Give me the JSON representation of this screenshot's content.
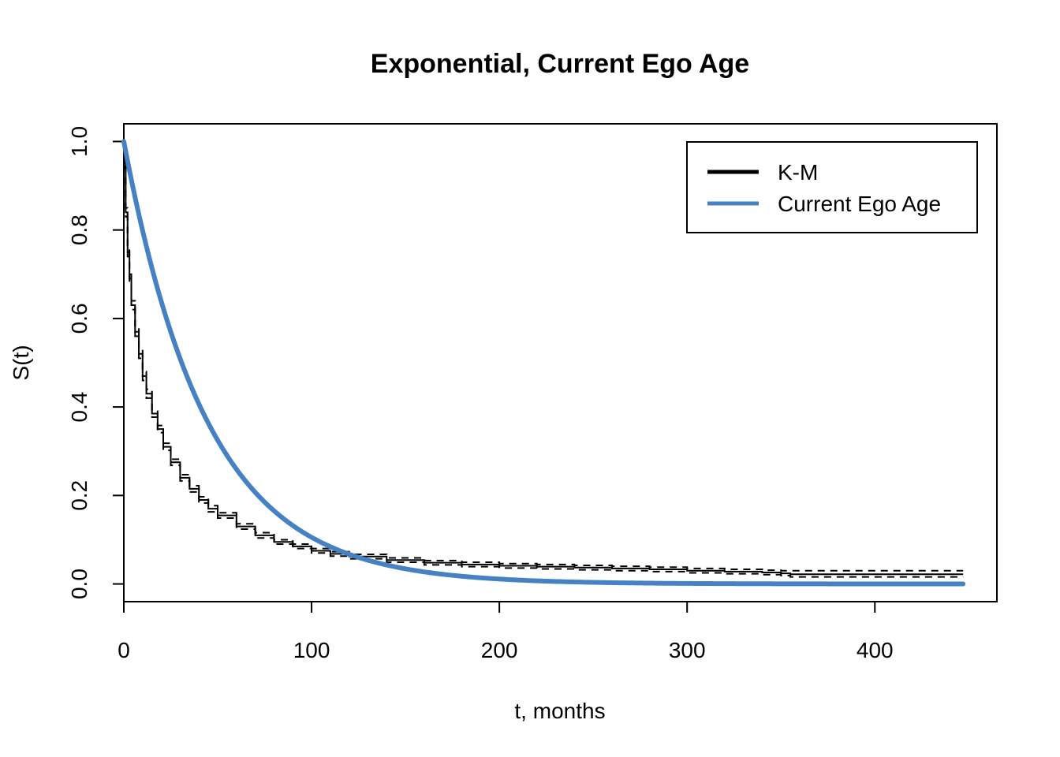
{
  "chart_data": {
    "type": "line",
    "title": "Exponential, Current Ego Age",
    "xlabel": "t, months",
    "ylabel": "S(t)",
    "xlim": [
      0,
      465
    ],
    "ylim": [
      -0.04,
      1.04
    ],
    "x_ticks": [
      0,
      100,
      200,
      300,
      400
    ],
    "y_ticks": [
      0.0,
      0.2,
      0.4,
      0.6,
      0.8,
      1.0
    ],
    "x_tick_labels": [
      "0",
      "100",
      "200",
      "300",
      "400"
    ],
    "y_tick_labels": [
      "0.0",
      "0.2",
      "0.4",
      "0.6",
      "0.8",
      "1.0"
    ],
    "legend": {
      "position": "top-right",
      "entries": [
        {
          "label": "K-M",
          "color": "#000000"
        },
        {
          "label": "Current Ego Age",
          "color": "#4682c3"
        }
      ]
    },
    "series": [
      {
        "name": "K-M",
        "style": "step",
        "color": "#000000",
        "x": [
          0,
          0.5,
          1,
          2,
          3,
          4,
          6,
          8,
          10,
          12,
          15,
          18,
          21,
          25,
          30,
          35,
          40,
          45,
          50,
          60,
          70,
          80,
          90,
          100,
          110,
          120,
          140,
          160,
          180,
          200,
          220,
          240,
          260,
          280,
          300,
          320,
          340,
          350,
          355,
          447
        ],
        "y": [
          1.0,
          0.95,
          0.84,
          0.75,
          0.69,
          0.63,
          0.57,
          0.52,
          0.47,
          0.43,
          0.385,
          0.35,
          0.31,
          0.275,
          0.24,
          0.215,
          0.19,
          0.17,
          0.155,
          0.13,
          0.11,
          0.095,
          0.085,
          0.075,
          0.068,
          0.062,
          0.054,
          0.048,
          0.044,
          0.041,
          0.039,
          0.037,
          0.035,
          0.033,
          0.03,
          0.028,
          0.026,
          0.024,
          0.022,
          0.022
        ]
      },
      {
        "name": "K-M 95% CI upper",
        "style": "step-dashed",
        "color": "#000000",
        "x": [
          0,
          0.5,
          1,
          2,
          3,
          4,
          6,
          8,
          10,
          12,
          15,
          18,
          21,
          25,
          30,
          35,
          40,
          45,
          50,
          60,
          70,
          80,
          90,
          100,
          110,
          120,
          140,
          160,
          180,
          200,
          220,
          240,
          260,
          280,
          300,
          320,
          340,
          350,
          355,
          447
        ],
        "y": [
          1.0,
          0.96,
          0.85,
          0.76,
          0.7,
          0.64,
          0.58,
          0.53,
          0.48,
          0.44,
          0.393,
          0.358,
          0.318,
          0.282,
          0.247,
          0.222,
          0.197,
          0.177,
          0.161,
          0.136,
          0.116,
          0.1,
          0.09,
          0.08,
          0.073,
          0.067,
          0.059,
          0.053,
          0.049,
          0.046,
          0.044,
          0.042,
          0.04,
          0.038,
          0.035,
          0.033,
          0.031,
          0.03,
          0.03,
          0.03
        ]
      },
      {
        "name": "K-M 95% CI lower",
        "style": "step-dashed",
        "color": "#000000",
        "x": [
          0,
          0.5,
          1,
          2,
          3,
          4,
          6,
          8,
          10,
          12,
          15,
          18,
          21,
          25,
          30,
          35,
          40,
          45,
          50,
          60,
          70,
          80,
          90,
          100,
          110,
          120,
          140,
          160,
          180,
          200,
          220,
          240,
          260,
          280,
          300,
          320,
          340,
          350,
          355,
          447
        ],
        "y": [
          1.0,
          0.94,
          0.83,
          0.74,
          0.68,
          0.62,
          0.56,
          0.51,
          0.46,
          0.42,
          0.377,
          0.342,
          0.302,
          0.268,
          0.233,
          0.208,
          0.183,
          0.163,
          0.149,
          0.124,
          0.104,
          0.09,
          0.08,
          0.07,
          0.063,
          0.057,
          0.049,
          0.043,
          0.039,
          0.036,
          0.034,
          0.032,
          0.03,
          0.028,
          0.025,
          0.023,
          0.021,
          0.019,
          0.016,
          0.016
        ]
      },
      {
        "name": "Current Ego Age",
        "style": "exponential",
        "color": "#4682c3",
        "rate": 0.0225,
        "x_range": [
          0,
          447
        ]
      }
    ]
  }
}
